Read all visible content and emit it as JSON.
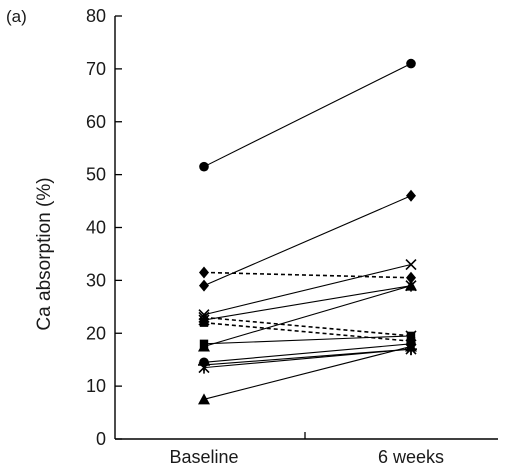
{
  "chart_data": {
    "type": "line",
    "panel_label": "(a)",
    "title": "",
    "xlabel": "",
    "ylabel": "Ca absorption (%)",
    "categories": [
      "Baseline",
      "6 weeks"
    ],
    "ylim": [
      0,
      80
    ],
    "yticks": [
      0,
      10,
      20,
      30,
      40,
      50,
      60,
      70,
      80
    ],
    "grid": false,
    "legend": "none",
    "series": [
      {
        "values": [
          51.5,
          71.0
        ],
        "marker": "circle",
        "line": "solid"
      },
      {
        "values": [
          29.0,
          46.0
        ],
        "marker": "diamond",
        "line": "solid"
      },
      {
        "values": [
          23.5,
          33.0
        ],
        "marker": "x",
        "line": "solid"
      },
      {
        "values": [
          22.5,
          29.0
        ],
        "marker": "asterisk",
        "line": "solid"
      },
      {
        "values": [
          17.5,
          29.0
        ],
        "marker": "triangle",
        "line": "solid"
      },
      {
        "values": [
          31.5,
          30.5
        ],
        "marker": "diamond",
        "line": "dashed"
      },
      {
        "values": [
          23.0,
          19.5
        ],
        "marker": "x",
        "line": "dashed"
      },
      {
        "values": [
          22.0,
          18.5
        ],
        "marker": "square",
        "line": "dashed"
      },
      {
        "values": [
          18.0,
          19.5
        ],
        "marker": "square",
        "line": "solid"
      },
      {
        "values": [
          14.5,
          18.0
        ],
        "marker": "circle",
        "line": "solid"
      },
      {
        "values": [
          14.0,
          17.0
        ],
        "marker": "plus",
        "line": "solid"
      },
      {
        "values": [
          13.5,
          17.0
        ],
        "marker": "asterisk",
        "line": "solid"
      },
      {
        "values": [
          7.5,
          17.5
        ],
        "marker": "triangle",
        "line": "solid"
      }
    ]
  }
}
